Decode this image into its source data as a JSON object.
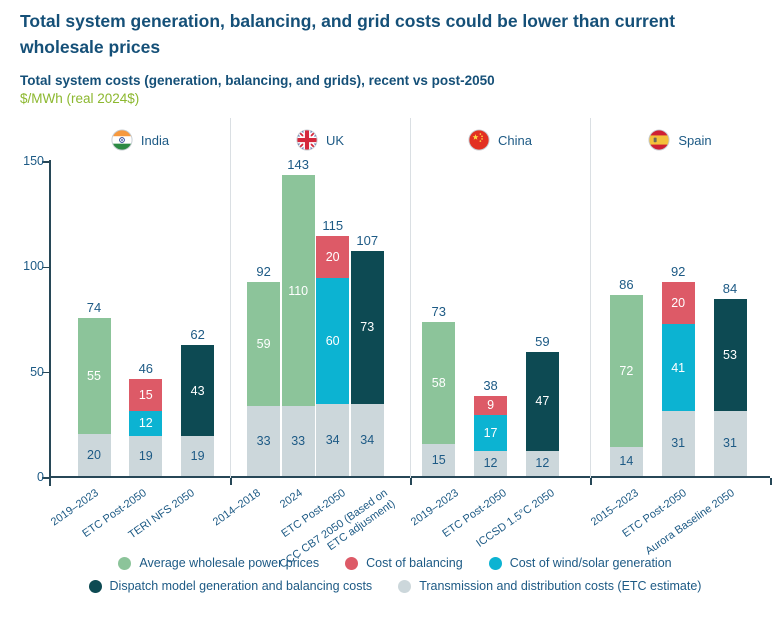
{
  "title": "Total system generation, balancing, and grid costs could be lower than current wholesale prices",
  "subtitle": "Total system costs (generation, balancing, and grids), recent vs post-2050",
  "units_label": "$/MWh (real 2024$)",
  "colors": {
    "title_text": "#155078",
    "units_text": "#8cb82f",
    "axis": "#274757",
    "divider": "#dadfe3",
    "series": {
      "wholesale": {
        "fill": "#8cc49a",
        "text": "#ffffff"
      },
      "balancing": {
        "fill": "#dd5a67",
        "text": "#ffffff"
      },
      "wind_solar": {
        "fill": "#0cb3d2",
        "text": "#ffffff"
      },
      "dispatch": {
        "fill": "#0d4a53",
        "text": "#ffffff"
      },
      "transmission": {
        "fill": "#ccd7db",
        "text": "#1d5a85"
      }
    }
  },
  "chart_data": {
    "type": "bar",
    "stacked": true,
    "title": "Total system costs (generation, balancing, and grids), recent vs post-2050",
    "ylabel": "$/MWh (real 2024$)",
    "ylim": [
      0,
      150
    ],
    "yticks": [
      0,
      50,
      100,
      150
    ],
    "grid": false,
    "legend_position": "bottom",
    "panels": [
      {
        "country": "India",
        "flag": "india",
        "bars": [
          {
            "label": "2019–2023",
            "total": 74,
            "segments": [
              {
                "series": "transmission",
                "value": 20
              },
              {
                "series": "wholesale",
                "value": 55
              }
            ]
          },
          {
            "label": "ETC Post-2050",
            "total": 46,
            "segments": [
              {
                "series": "transmission",
                "value": 19
              },
              {
                "series": "wind_solar",
                "value": 12
              },
              {
                "series": "balancing",
                "value": 15
              }
            ]
          },
          {
            "label": "TERI NFS 2050",
            "total": 62,
            "segments": [
              {
                "series": "transmission",
                "value": 19
              },
              {
                "series": "dispatch",
                "value": 43
              }
            ]
          }
        ]
      },
      {
        "country": "UK",
        "flag": "uk",
        "bars": [
          {
            "label": "2014–2018",
            "total": 92,
            "segments": [
              {
                "series": "transmission",
                "value": 33
              },
              {
                "series": "wholesale",
                "value": 59
              }
            ]
          },
          {
            "label": "2024",
            "total": 143,
            "segments": [
              {
                "series": "transmission",
                "value": 33
              },
              {
                "series": "wholesale",
                "value": 110
              }
            ]
          },
          {
            "label": "ETC Post-2050",
            "total": 115,
            "segments": [
              {
                "series": "transmission",
                "value": 34
              },
              {
                "series": "wind_solar",
                "value": 60
              },
              {
                "series": "balancing",
                "value": 20
              }
            ]
          },
          {
            "label": "CCC CB7 2050 (Based on ETC adjusment)",
            "total": 107,
            "segments": [
              {
                "series": "transmission",
                "value": 34
              },
              {
                "series": "dispatch",
                "value": 73
              }
            ]
          }
        ]
      },
      {
        "country": "China",
        "flag": "china",
        "bars": [
          {
            "label": "2019–2023",
            "total": 73,
            "segments": [
              {
                "series": "transmission",
                "value": 15
              },
              {
                "series": "wholesale",
                "value": 58
              }
            ]
          },
          {
            "label": "ETC Post-2050",
            "total": 38,
            "segments": [
              {
                "series": "transmission",
                "value": 12
              },
              {
                "series": "wind_solar",
                "value": 17
              },
              {
                "series": "balancing",
                "value": 9
              }
            ]
          },
          {
            "label": "ICCSD 1.5°C 2050",
            "total": 59,
            "segments": [
              {
                "series": "transmission",
                "value": 12
              },
              {
                "series": "dispatch",
                "value": 47
              }
            ]
          }
        ]
      },
      {
        "country": "Spain",
        "flag": "spain",
        "bars": [
          {
            "label": "2015–2023",
            "total": 86,
            "segments": [
              {
                "series": "transmission",
                "value": 14
              },
              {
                "series": "wholesale",
                "value": 72
              }
            ]
          },
          {
            "label": "ETC Post-2050",
            "total": 92,
            "segments": [
              {
                "series": "transmission",
                "value": 31
              },
              {
                "series": "wind_solar",
                "value": 41
              },
              {
                "series": "balancing",
                "value": 20
              }
            ]
          },
          {
            "label": "Aurora Baseline 2050",
            "total": 84,
            "segments": [
              {
                "series": "transmission",
                "value": 31
              },
              {
                "series": "dispatch",
                "value": 53
              }
            ]
          }
        ]
      }
    ],
    "legend": [
      {
        "series": "wholesale",
        "label": "Average wholesale power prices"
      },
      {
        "series": "balancing",
        "label": "Cost of balancing"
      },
      {
        "series": "wind_solar",
        "label": "Cost of wind/solar generation"
      },
      {
        "series": "dispatch",
        "label": "Dispatch model generation and balancing costs"
      },
      {
        "series": "transmission",
        "label": "Transmission and distribution costs (ETC estimate)"
      }
    ],
    "legend_rows": [
      3,
      2
    ]
  }
}
